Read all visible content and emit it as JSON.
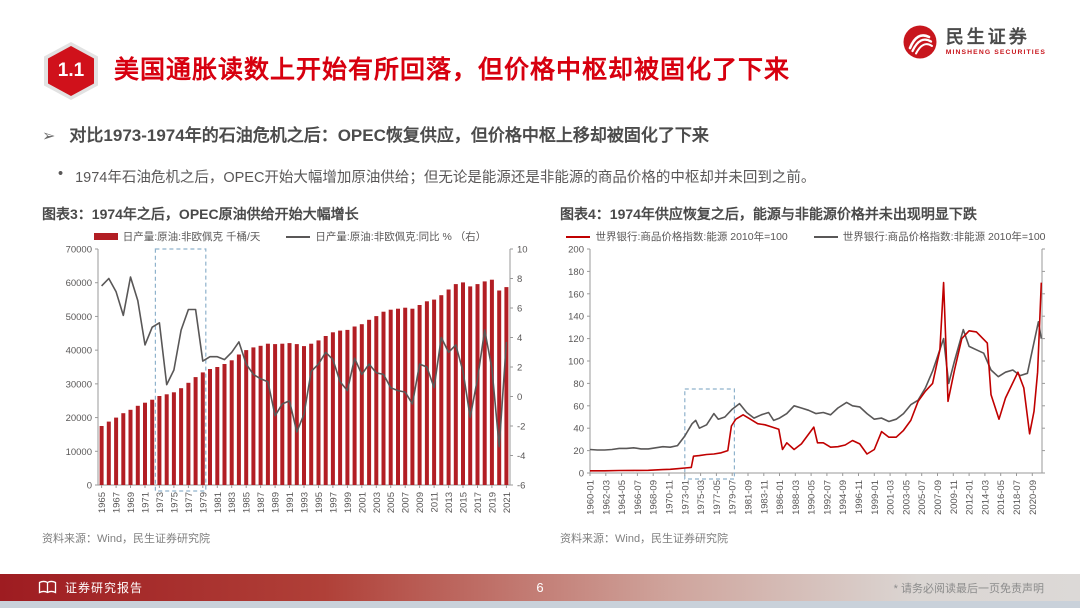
{
  "header": {
    "section_number": "1.1",
    "title": "美国通胀读数上开始有所回落，但价格中枢却被固化了下来",
    "logo_cn": "民生证券",
    "logo_en": "MINSHENG SECURITIES"
  },
  "content": {
    "bullet_arrow": "➢",
    "bullet_heading": "对比1973-1974年的石油危机之后：OPEC恢复供应，但价格中枢上移却被固化了下来",
    "bullet_dot": "•",
    "bullet_detail": "1974年石油危机之后，OPEC开始大幅增加原油供给；但无论是能源还是非能源的商品价格的中枢却并未回到之前。"
  },
  "footer": {
    "report_type": "证券研究报告",
    "page_number": "6",
    "disclaimer": "* 请务必阅读最后一页免责声明"
  },
  "colors": {
    "brand_red": "#c8161d",
    "title_red": "#d7000f",
    "bar_red": "#b21e24",
    "energy_red": "#c00000",
    "line_gray": "#595757",
    "highlight_box_blue": "#8fb2cc"
  },
  "chart_data": [
    {
      "type": "bar",
      "title": "图表3：1974年之后，OPEC原油供给开始大幅增长",
      "source": "资料来源：Wind，民生证券研究院",
      "legend": [
        {
          "label": "日产量:原油:非欧佩克 千桶/天",
          "type": "bar",
          "color": "#b21e24"
        },
        {
          "label": "日产量:原油:非欧佩克:同比 % （右）",
          "type": "line",
          "color": "#595757"
        }
      ],
      "years": [
        1965,
        1966,
        1967,
        1968,
        1969,
        1970,
        1971,
        1972,
        1973,
        1974,
        1975,
        1976,
        1977,
        1978,
        1979,
        1980,
        1981,
        1982,
        1983,
        1984,
        1985,
        1986,
        1987,
        1988,
        1989,
        1990,
        1991,
        1992,
        1993,
        1994,
        1995,
        1996,
        1997,
        1998,
        1999,
        2000,
        2001,
        2002,
        2003,
        2004,
        2005,
        2006,
        2007,
        2008,
        2009,
        2010,
        2011,
        2012,
        2013,
        2014,
        2015,
        2016,
        2017,
        2018,
        2019,
        2020,
        2021
      ],
      "bar_values": [
        17500,
        18800,
        20000,
        21300,
        22300,
        23500,
        24400,
        25300,
        26400,
        26900,
        27500,
        28700,
        30300,
        32000,
        33400,
        34400,
        35000,
        35900,
        37000,
        38700,
        40000,
        40800,
        41300,
        41900,
        41800,
        41900,
        42100,
        41800,
        41200,
        41900,
        42900,
        44200,
        45300,
        45800,
        46000,
        47000,
        47700,
        49000,
        50100,
        51400,
        52000,
        52300,
        52600,
        52300,
        53400,
        54500,
        55000,
        56300,
        58000,
        59600,
        60100,
        58900,
        59600,
        60400,
        60900,
        57700,
        58700
      ],
      "line_values": [
        7.5,
        8.0,
        7.1,
        5.5,
        8.1,
        6.5,
        3.5,
        4.7,
        5.0,
        0.8,
        1.8,
        4.5,
        5.9,
        5.9,
        2.4,
        2.7,
        2.7,
        2.5,
        3.0,
        3.7,
        2.2,
        1.5,
        1.2,
        1.0,
        -1.3,
        -0.5,
        -0.3,
        -2.4,
        -1.2,
        1.7,
        2.2,
        3.0,
        2.5,
        1.0,
        0.4,
        2.6,
        1.5,
        2.2,
        1.6,
        1.5,
        0.6,
        0.4,
        0.3,
        -0.5,
        2.2,
        2.0,
        0.6,
        4.0,
        3.0,
        3.5,
        1.7,
        -1.4,
        1.2,
        4.5,
        1.9,
        -3.4,
        3.7
      ],
      "y_left": {
        "min": 0,
        "max": 70000,
        "step": 10000
      },
      "y_right": {
        "min": -6,
        "max": 10,
        "step": 2
      },
      "x_tick_years": [
        1965,
        1967,
        1969,
        1971,
        1973,
        1975,
        1977,
        1979,
        1981,
        1983,
        1985,
        1987,
        1989,
        1991,
        1993,
        1995,
        1997,
        1999,
        2001,
        2003,
        2005,
        2007,
        2009,
        2011,
        2013,
        2015,
        2017,
        2019,
        2021
      ],
      "highlight_box": {
        "from_year": 1973,
        "to_year": 1979
      }
    },
    {
      "type": "line",
      "title": "图表4：1974年供应恢复之后，能源与非能源价格并未出现明显下跌",
      "source": "资料来源：Wind，民生证券研究院",
      "legend": [
        {
          "label": "世界银行:商品价格指数:能源 2010年=100",
          "type": "line",
          "color": "#c00000"
        },
        {
          "label": "世界银行:商品价格指数:非能源 2010年=100",
          "type": "line",
          "color": "#595757"
        }
      ],
      "y_axis": {
        "min": 0,
        "max": 200,
        "step": 20
      },
      "x_range_years": [
        1960,
        2022
      ],
      "x_tick_labels": [
        "1960-01",
        "1962-03",
        "1964-05",
        "1966-07",
        "1968-09",
        "1970-11",
        "1973-01",
        "1975-03",
        "1977-05",
        "1979-07",
        "1981-09",
        "1983-11",
        "1986-01",
        "1988-03",
        "1990-05",
        "1992-07",
        "1994-09",
        "1996-11",
        "1999-01",
        "2001-03",
        "2003-05",
        "2005-07",
        "2007-09",
        "2009-11",
        "2012-01",
        "2014-03",
        "2016-05",
        "2018-07",
        "2020-09"
      ],
      "series": [
        {
          "name": "世界银行:商品价格指数:能源 2010年=100",
          "color": "#c00000",
          "points": [
            [
              1960,
              2
            ],
            [
              1962,
              2
            ],
            [
              1964,
              2.2
            ],
            [
              1966,
              2.3
            ],
            [
              1968,
              2.4
            ],
            [
              1970,
              3
            ],
            [
              1971,
              3.3
            ],
            [
              1972,
              3.8
            ],
            [
              1973,
              4.5
            ],
            [
              1973.9,
              5
            ],
            [
              1974.2,
              15
            ],
            [
              1975,
              15.5
            ],
            [
              1976,
              16.5
            ],
            [
              1977,
              17
            ],
            [
              1978,
              18
            ],
            [
              1978.9,
              20
            ],
            [
              1979.4,
              42
            ],
            [
              1980,
              48
            ],
            [
              1981,
              52
            ],
            [
              1982,
              48
            ],
            [
              1983,
              44
            ],
            [
              1984,
              43
            ],
            [
              1985,
              41
            ],
            [
              1985.9,
              39
            ],
            [
              1986.4,
              21
            ],
            [
              1987,
              27
            ],
            [
              1988,
              21
            ],
            [
              1989,
              26
            ],
            [
              1990.7,
              41
            ],
            [
              1991.2,
              27
            ],
            [
              1992,
              27
            ],
            [
              1993,
              23
            ],
            [
              1994,
              23.5
            ],
            [
              1995,
              25
            ],
            [
              1996,
              29
            ],
            [
              1997,
              26
            ],
            [
              1998,
              17
            ],
            [
              1999,
              21
            ],
            [
              2000,
              37
            ],
            [
              2001,
              32
            ],
            [
              2002,
              32
            ],
            [
              2003,
              38
            ],
            [
              2004,
              47
            ],
            [
              2005,
              64
            ],
            [
              2006,
              73
            ],
            [
              2007,
              80
            ],
            [
              2008,
              110
            ],
            [
              2008.5,
              170
            ],
            [
              2009.1,
              64
            ],
            [
              2010,
              92
            ],
            [
              2011,
              120
            ],
            [
              2012,
              127
            ],
            [
              2013,
              126
            ],
            [
              2014.5,
              116
            ],
            [
              2015,
              70
            ],
            [
              2016.1,
              48
            ],
            [
              2017,
              67
            ],
            [
              2018.7,
              90
            ],
            [
              2019.5,
              76
            ],
            [
              2020.3,
              35
            ],
            [
              2020.9,
              55
            ],
            [
              2021.4,
              90
            ],
            [
              2021.9,
              170
            ]
          ]
        },
        {
          "name": "世界银行:商品价格指数:非能源 2010年=100",
          "color": "#595757",
          "points": [
            [
              1960,
              21
            ],
            [
              1961,
              20.5
            ],
            [
              1962,
              20.5
            ],
            [
              1963,
              21
            ],
            [
              1964,
              22
            ],
            [
              1965,
              22
            ],
            [
              1966,
              22.5
            ],
            [
              1967,
              21.5
            ],
            [
              1968,
              21.5
            ],
            [
              1969,
              22.5
            ],
            [
              1970,
              23.5
            ],
            [
              1971,
              23
            ],
            [
              1972,
              24.5
            ],
            [
              1973,
              33
            ],
            [
              1974,
              44
            ],
            [
              1974.5,
              47
            ],
            [
              1975,
              40
            ],
            [
              1976,
              43
            ],
            [
              1977,
              53
            ],
            [
              1977.6,
              48
            ],
            [
              1978.5,
              50
            ],
            [
              1979.5,
              57
            ],
            [
              1980.5,
              62
            ],
            [
              1981.5,
              54
            ],
            [
              1982.5,
              49
            ],
            [
              1983.5,
              52
            ],
            [
              1984.5,
              54
            ],
            [
              1985.2,
              47
            ],
            [
              1986,
              49
            ],
            [
              1987,
              53
            ],
            [
              1988,
              60
            ],
            [
              1989,
              58
            ],
            [
              1990,
              56
            ],
            [
              1991,
              53
            ],
            [
              1992,
              54
            ],
            [
              1993,
              52
            ],
            [
              1994,
              58
            ],
            [
              1995.2,
              63
            ],
            [
              1996,
              60
            ],
            [
              1997,
              59
            ],
            [
              1998,
              53
            ],
            [
              1999,
              48
            ],
            [
              2000,
              49
            ],
            [
              2001,
              46
            ],
            [
              2002,
              48
            ],
            [
              2003,
              53
            ],
            [
              2004,
              61
            ],
            [
              2005,
              65
            ],
            [
              2006,
              76
            ],
            [
              2007,
              91
            ],
            [
              2008.5,
              120
            ],
            [
              2009.2,
              80
            ],
            [
              2010,
              100
            ],
            [
              2011.2,
              128
            ],
            [
              2012,
              113
            ],
            [
              2013,
              110
            ],
            [
              2014,
              107
            ],
            [
              2015,
              92
            ],
            [
              2016,
              86
            ],
            [
              2017,
              90
            ],
            [
              2018,
              92
            ],
            [
              2019,
              87
            ],
            [
              2020,
              89
            ],
            [
              2021.5,
              135
            ],
            [
              2021.9,
              120
            ]
          ]
        }
      ],
      "highlight_box": {
        "from_year": 1973,
        "to_year": 1979.8,
        "top_value": 75
      }
    }
  ]
}
